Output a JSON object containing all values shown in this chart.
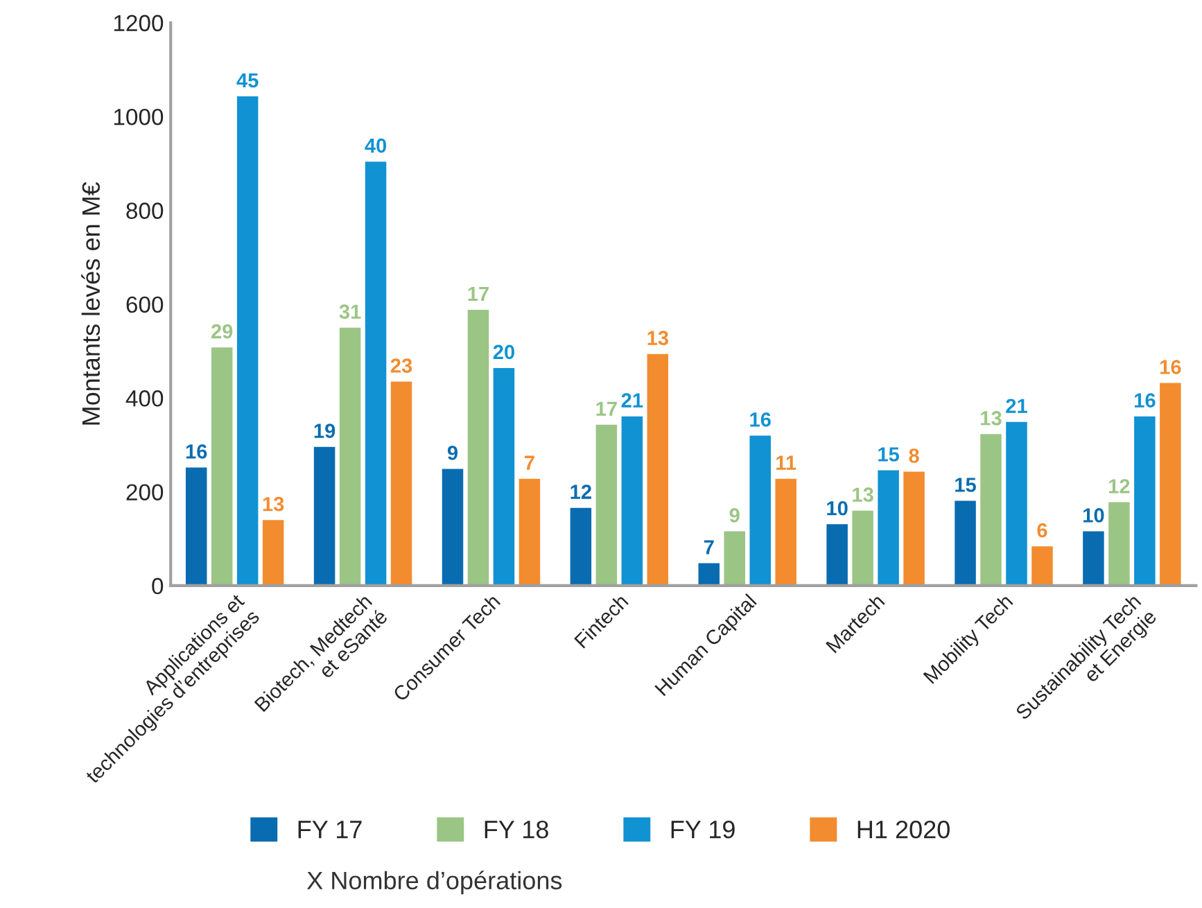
{
  "chart_data": {
    "type": "bar",
    "ylabel": "Montants levés en M€",
    "categories": [
      "Applications et\ntechnologies d’entreprises",
      "Biotech, Medtech\net eSanté",
      "Consumer Tech",
      "Fintech",
      "Human Capital",
      "Martech",
      "Mobility Tech",
      "Sustainability Tech\net Energie"
    ],
    "series": [
      {
        "name": "FY 17",
        "color": "#0a6cb0",
        "values": [
          254,
          298,
          251,
          168,
          50,
          133,
          183,
          118
        ]
      },
      {
        "name": "FY 18",
        "color": "#9bc585",
        "values": [
          510,
          552,
          590,
          345,
          118,
          162,
          325,
          180
        ]
      },
      {
        "name": "FY 19",
        "color": "#1192d2",
        "values": [
          1045,
          906,
          466,
          363,
          322,
          248,
          351,
          363
        ]
      },
      {
        "name": "H1 2020",
        "color": "#f28c2f",
        "values": [
          142,
          437,
          230,
          496,
          230,
          245,
          86,
          434
        ]
      }
    ],
    "ylim": [
      0,
      1200
    ],
    "yticks": [
      0,
      200,
      400,
      600,
      800,
      1000,
      1200
    ],
    "grid": false,
    "legend": "bottom",
    "annotations": [
      "16",
      "29",
      "45",
      "13",
      "19",
      "31",
      "40",
      "23",
      "9",
      "17",
      "20",
      "7",
      "12",
      "17",
      "21",
      "13",
      "7",
      "9",
      "16",
      "11",
      "10",
      "13",
      "15",
      "8",
      "15",
      "13",
      "21",
      "6",
      "10",
      "12",
      "16",
      "16",
      "X Nombre d’opérations"
    ]
  }
}
